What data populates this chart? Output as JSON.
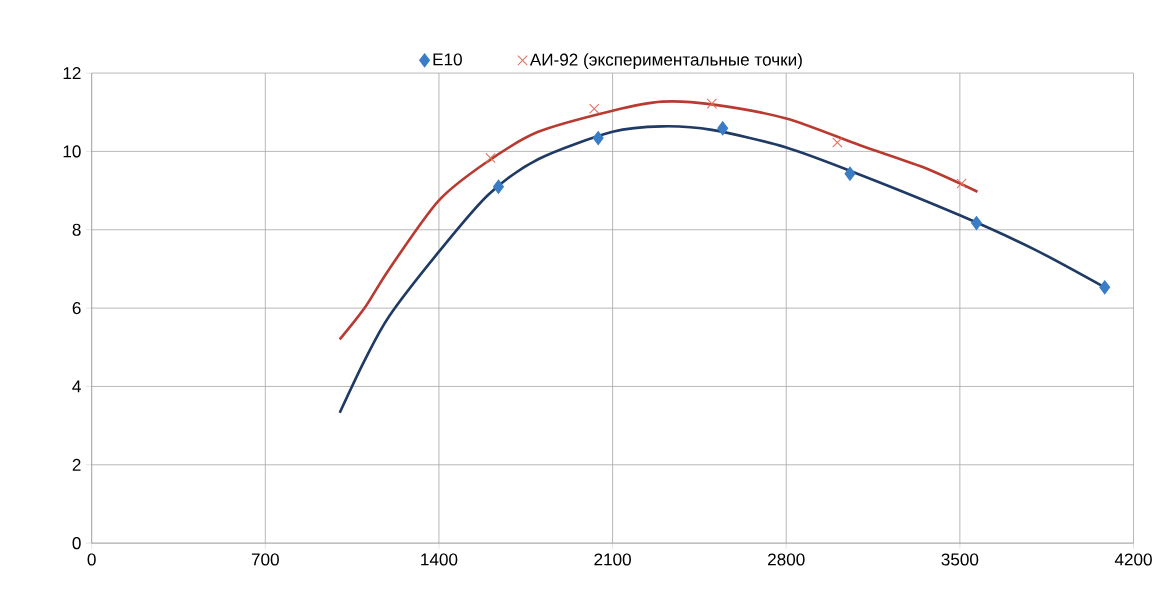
{
  "chart_data": {
    "type": "scatter",
    "xlim": [
      0,
      4200
    ],
    "ylim": [
      0,
      12
    ],
    "xticks": [
      0,
      700,
      1400,
      2100,
      2800,
      3500,
      4200
    ],
    "yticks": [
      0,
      2,
      4,
      6,
      8,
      10,
      12
    ],
    "grid": true,
    "legend": "top",
    "series": [
      {
        "name": "E10",
        "marker": "diamond",
        "color": "#3a7dc6",
        "x": [
          1640,
          2042,
          2544,
          3057,
          3567,
          4084
        ],
        "values": [
          9.1,
          10.34,
          10.59,
          9.43,
          8.17,
          6.53
        ]
      },
      {
        "name": "АИ-92    (экспериментальные точки)",
        "marker": "cross",
        "color": "#e0705f",
        "x": [
          1608,
          2026,
          2500,
          3006,
          3507
        ],
        "values": [
          9.83,
          11.09,
          11.22,
          10.23,
          9.18
        ]
      },
      {
        "type": "line",
        "color": "#1f3a64",
        "x": [
          1000,
          1100,
          1200,
          1400,
          1600,
          1800,
          2100,
          2300,
          2500,
          2800,
          3100,
          3500,
          3800,
          4084
        ],
        "values": [
          3.33,
          4.66,
          5.8,
          7.44,
          8.9,
          9.8,
          10.5,
          10.64,
          10.55,
          10.1,
          9.4,
          8.37,
          7.5,
          6.53
        ]
      },
      {
        "type": "line",
        "color": "#b83a30",
        "x": [
          1000,
          1100,
          1200,
          1400,
          1600,
          1800,
          2100,
          2300,
          2500,
          2800,
          3100,
          3350,
          3571
        ],
        "values": [
          5.2,
          6.0,
          7.0,
          8.75,
          9.76,
          10.5,
          11.04,
          11.27,
          11.2,
          10.84,
          10.15,
          9.6,
          8.97
        ]
      }
    ]
  }
}
